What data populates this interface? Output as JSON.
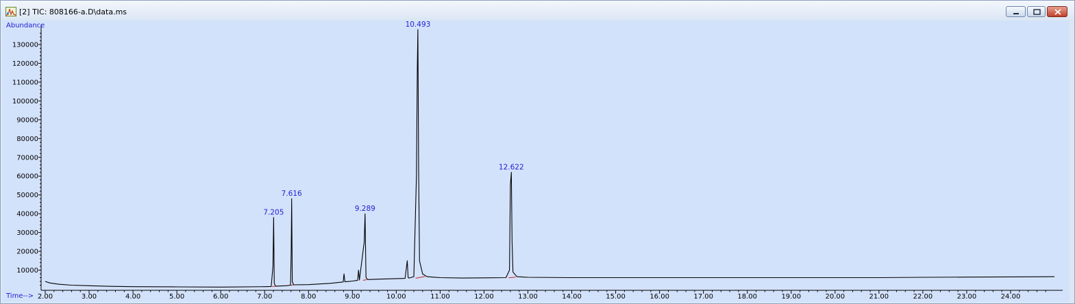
{
  "window": {
    "title": "[2] TIC: 808166-a.D\\data.ms",
    "controls": [
      "minimize",
      "maximize",
      "close"
    ]
  },
  "colors": {
    "plot_background": "#d3e2fb",
    "trace": "#000000",
    "baseline_markers": "#d02020",
    "labels": "#1f1fd0"
  },
  "chart_data": {
    "type": "line",
    "ylabel": "Abundance",
    "xlabel": "Time-->",
    "xlim": [
      2.0,
      25.0
    ],
    "ylim": [
      0,
      138000
    ],
    "x_ticks": [
      "2.00",
      "3.00",
      "4.00",
      "5.00",
      "6.00",
      "7.00",
      "8.00",
      "9.00",
      "10.00",
      "11.00",
      "12.00",
      "13.00",
      "14.00",
      "15.00",
      "16.00",
      "17.00",
      "18.00",
      "19.00",
      "20.00",
      "21.00",
      "22.00",
      "23.00",
      "24.00"
    ],
    "y_ticks": [
      "10000",
      "20000",
      "30000",
      "40000",
      "50000",
      "60000",
      "70000",
      "80000",
      "90000",
      "100000",
      "110000",
      "120000",
      "130000"
    ],
    "grid": false,
    "series": [
      {
        "x": [
          2.0,
          2.1,
          2.3,
          2.6,
          3.0,
          3.5,
          4.0,
          5.0,
          6.0,
          7.0,
          7.15,
          7.19,
          7.205,
          7.22,
          7.25,
          7.5,
          7.59,
          7.605,
          7.616,
          7.63,
          7.66,
          8.0,
          8.5,
          8.79,
          8.81,
          8.83,
          9.0,
          9.12,
          9.14,
          9.16,
          9.27,
          9.289,
          9.31,
          9.35,
          9.6,
          10.0,
          10.2,
          10.25,
          10.27,
          10.29,
          10.4,
          10.46,
          10.48,
          10.493,
          10.51,
          10.53,
          10.6,
          10.7,
          11.0,
          11.5,
          12.0,
          12.5,
          12.58,
          12.6,
          12.622,
          12.64,
          12.66,
          12.75,
          13.0,
          14.0,
          15.0,
          16.0,
          17.0,
          18.0,
          19.0,
          20.0,
          21.0,
          22.0,
          23.0,
          24.0,
          25.0
        ],
        "y": [
          4000,
          3200,
          2500,
          2000,
          1700,
          1400,
          1200,
          1100,
          1000,
          1200,
          1300,
          12000,
          38000,
          3000,
          1500,
          1700,
          2000,
          20000,
          48000,
          4000,
          2200,
          2300,
          3000,
          3700,
          8000,
          3800,
          4200,
          4600,
          10000,
          4700,
          25000,
          40000,
          6000,
          5000,
          5200,
          5500,
          5600,
          15000,
          6000,
          5800,
          6500,
          60000,
          118000,
          138000,
          64000,
          15000,
          8000,
          6500,
          6000,
          5800,
          5900,
          6000,
          10000,
          55000,
          62000,
          25000,
          9000,
          6500,
          6200,
          6000,
          6000,
          6000,
          6000,
          6000,
          6000,
          6000,
          6000,
          6200,
          6300,
          6400,
          6500
        ]
      }
    ],
    "peak_labels": [
      {
        "x": 7.205,
        "y": 38000,
        "label": "7.205"
      },
      {
        "x": 7.616,
        "y": 48000,
        "label": "7.616"
      },
      {
        "x": 9.289,
        "y": 40000,
        "label": "9.289"
      },
      {
        "x": 10.493,
        "y": 138000,
        "label": "10.493"
      },
      {
        "x": 12.622,
        "y": 62000,
        "label": "12.622"
      }
    ],
    "integration_baselines": [
      {
        "x": [
          7.17,
          7.24
        ],
        "y": [
          1300,
          1400
        ]
      },
      {
        "x": [
          7.58,
          7.65
        ],
        "y": [
          1900,
          2100
        ]
      },
      {
        "x": [
          9.24,
          9.33
        ],
        "y": [
          4600,
          4900
        ]
      },
      {
        "x": [
          10.44,
          10.65
        ],
        "y": [
          5700,
          6600
        ]
      },
      {
        "x": [
          12.56,
          12.72
        ],
        "y": [
          5900,
          6300
        ]
      }
    ]
  }
}
